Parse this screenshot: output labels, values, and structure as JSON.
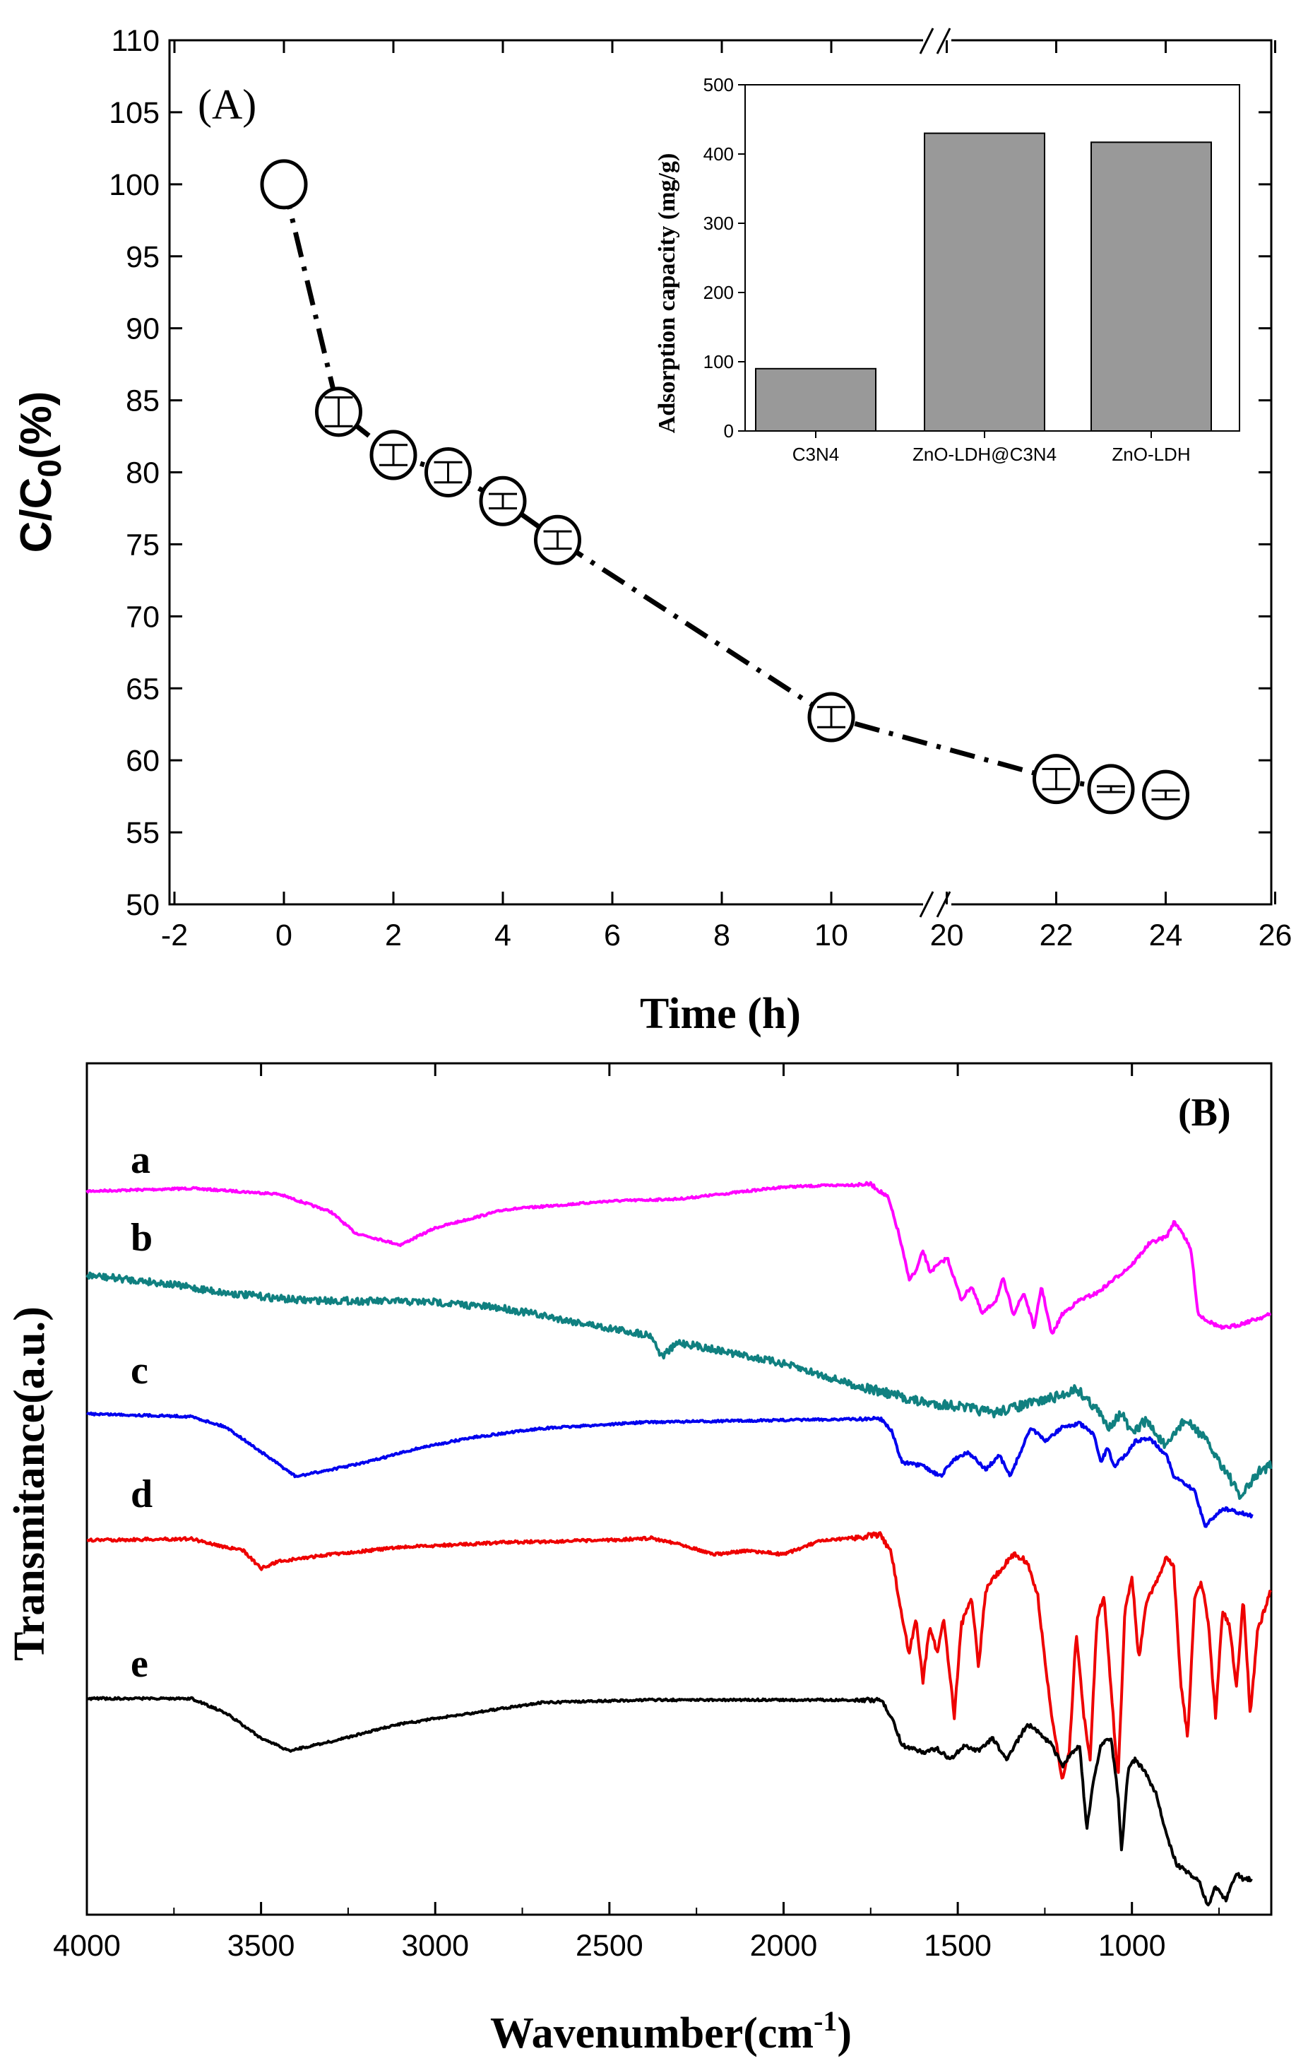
{
  "chart_data": [
    {
      "id": "A",
      "type": "line",
      "panel_label": "(A)",
      "xlabel": "Time (h)",
      "ylabel_main": "C/C",
      "ylabel_sub": "0",
      "ylabel_tail": "(%)",
      "xlim": [
        -2,
        26
      ],
      "ylim": [
        50,
        110
      ],
      "x_ticks": [
        -2,
        0,
        2,
        4,
        6,
        8,
        10,
        20,
        22,
        24,
        26
      ],
      "y_ticks": [
        50,
        55,
        60,
        65,
        70,
        75,
        80,
        85,
        90,
        95,
        100,
        105,
        110
      ],
      "axis_break": "between 10 and 20",
      "series": [
        {
          "name": "C/C0",
          "x": [
            0,
            1,
            2,
            3,
            4,
            5,
            10,
            22,
            23,
            24
          ],
          "y": [
            100,
            84.2,
            81.2,
            80.0,
            78.0,
            75.3,
            63.0,
            58.7,
            58.0,
            57.6
          ],
          "err": [
            0,
            1.0,
            0.7,
            0.7,
            0.5,
            0.6,
            0.7,
            0.7,
            0.2,
            0.3
          ]
        }
      ],
      "inset": {
        "type": "bar",
        "ylabel": "Adsorption capacity (mg/g)",
        "ylim": [
          0,
          500
        ],
        "y_ticks": [
          0,
          100,
          200,
          300,
          400,
          500
        ],
        "categories": [
          "C3N4",
          "ZnO-LDH@C3N4",
          "ZnO-LDH"
        ],
        "values": [
          90,
          430,
          417
        ]
      }
    },
    {
      "id": "B",
      "type": "line",
      "panel_label": "(B)",
      "xlabel_main": "Wavenumber(cm",
      "xlabel_sup": "-1",
      "xlabel_tail": ")",
      "ylabel": "Transmitance(a.u.)",
      "xlim": [
        4000,
        600
      ],
      "x_ticks": [
        4000,
        3500,
        3000,
        2500,
        2000,
        1500,
        1000
      ],
      "series": [
        {
          "name": "a",
          "color": "#ff00ff"
        },
        {
          "name": "b",
          "color": "#108080"
        },
        {
          "name": "c",
          "color": "#0000ee"
        },
        {
          "name": "d",
          "color": "#ee0000"
        },
        {
          "name": "e",
          "color": "#000000"
        }
      ]
    }
  ]
}
